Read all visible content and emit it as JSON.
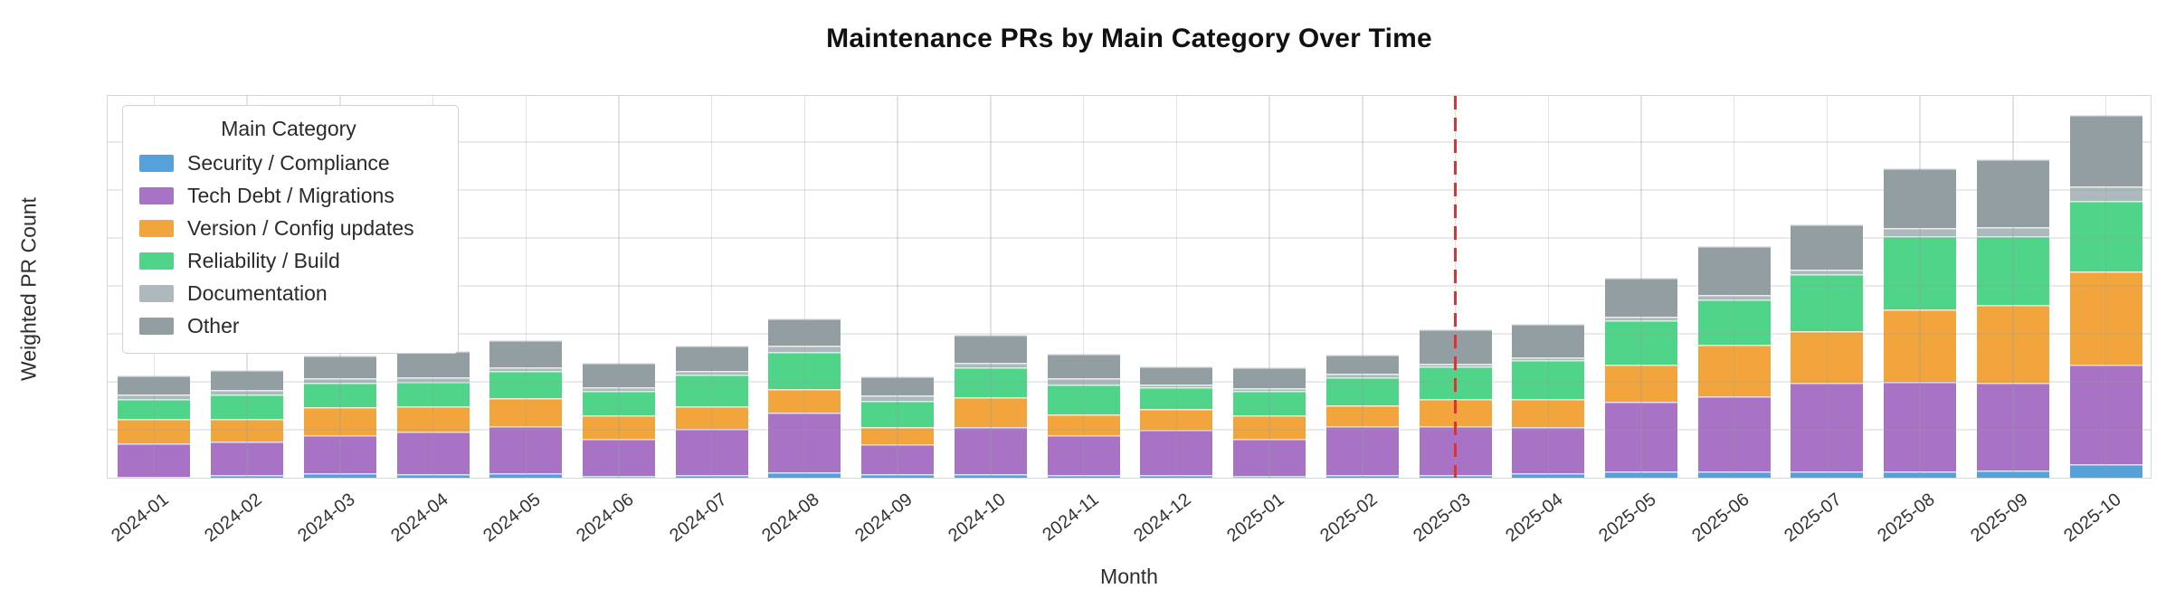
{
  "title": "Maintenance PRs by Main Category Over Time",
  "axes": {
    "x_label": "Month",
    "y_label": "Weighted PR Count"
  },
  "legend": {
    "title": "Main Category",
    "position": "upper left"
  },
  "colors": {
    "security": "#55A1D9",
    "tech_debt": "#A873C5",
    "version": "#F2A53C",
    "reliability": "#4FD489",
    "documentation": "#AEB9BE",
    "other": "#939EA2",
    "vline": "#E03030",
    "grid": "#E7EBED",
    "plot_border": "#D3DADD"
  },
  "chart_data": {
    "type": "bar",
    "stacked": true,
    "title": "Maintenance PRs by Main Category Over Time",
    "xlabel": "Month",
    "ylabel": "Weighted PR Count",
    "grid": true,
    "legend_position": "upper left",
    "y_ticks_labeled": false,
    "ylim": [
      0,
      106
    ],
    "y_grid_step": 13.25,
    "categories": [
      "2024-01",
      "2024-02",
      "2024-03",
      "2024-04",
      "2024-05",
      "2024-06",
      "2024-07",
      "2024-08",
      "2024-09",
      "2024-10",
      "2024-11",
      "2024-12",
      "2025-01",
      "2025-02",
      "2025-03",
      "2025-04",
      "2025-05",
      "2025-06",
      "2025-07",
      "2025-08",
      "2025-09",
      "2025-10"
    ],
    "series": [
      {
        "name": "Security / Compliance",
        "color": "#55A1D9",
        "values": [
          0.25,
          0.75,
          1.25,
          1.0,
          1.25,
          0.5,
          0.75,
          1.5,
          1.0,
          1.0,
          0.75,
          0.75,
          0.5,
          0.75,
          0.75,
          1.25,
          1.75,
          1.75,
          1.75,
          1.75,
          2.0,
          3.75
        ]
      },
      {
        "name": "Tech Debt / Migrations",
        "color": "#A873C5",
        "values": [
          9.25,
          9.25,
          10.5,
          11.75,
          13.0,
          10.25,
          12.75,
          16.5,
          8.25,
          13.0,
          11.0,
          12.5,
          10.25,
          13.5,
          13.5,
          12.75,
          19.25,
          20.75,
          24.5,
          24.75,
          24.25,
          27.5
        ]
      },
      {
        "name": "Version / Config updates",
        "color": "#F2A53C",
        "values": [
          6.75,
          6.25,
          7.75,
          7.0,
          7.75,
          6.5,
          6.25,
          6.5,
          4.75,
          8.25,
          5.75,
          5.75,
          6.5,
          5.75,
          7.5,
          7.75,
          10.25,
          14.25,
          14.25,
          20.0,
          21.5,
          25.75
        ]
      },
      {
        "name": "Reliability / Build",
        "color": "#4FD489",
        "values": [
          5.5,
          6.75,
          6.75,
          6.75,
          7.5,
          6.75,
          8.75,
          10.25,
          7.25,
          8.25,
          8.25,
          6.0,
          6.75,
          7.75,
          9.0,
          10.75,
          12.25,
          12.5,
          15.75,
          20.25,
          19.0,
          19.5
        ]
      },
      {
        "name": "Documentation",
        "color": "#AEB9BE",
        "values": [
          1.25,
          1.25,
          1.25,
          1.25,
          1.0,
          1.0,
          1.0,
          1.75,
          1.5,
          1.25,
          1.75,
          0.75,
          0.75,
          1.0,
          0.75,
          0.75,
          1.0,
          1.25,
          1.25,
          2.25,
          2.5,
          4.0
        ]
      },
      {
        "name": "Other",
        "color": "#939EA2",
        "values": [
          5.25,
          5.5,
          6.25,
          7.25,
          7.5,
          6.75,
          7.0,
          7.5,
          5.25,
          7.75,
          6.75,
          5.0,
          5.75,
          5.25,
          9.5,
          9.25,
          10.75,
          13.5,
          12.5,
          16.5,
          18.75,
          19.75
        ]
      }
    ],
    "annotations": [
      {
        "type": "vline",
        "x": "2025-03",
        "style": "dashed",
        "color": "#E03030"
      }
    ]
  }
}
